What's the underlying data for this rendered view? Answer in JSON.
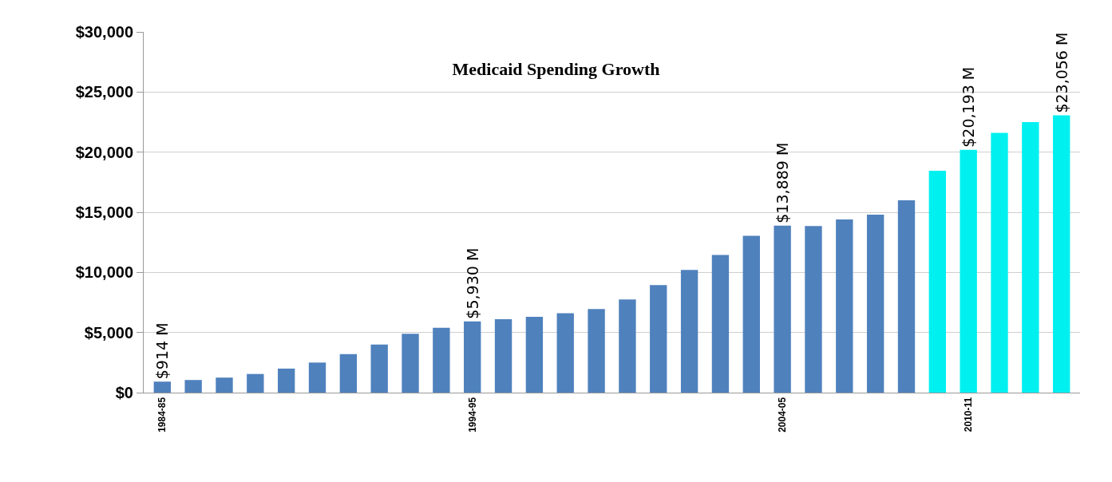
{
  "chart_data": {
    "type": "bar",
    "title": "Medicaid Spending Growth",
    "categories": [
      "1984-85",
      null,
      null,
      null,
      null,
      null,
      null,
      null,
      null,
      null,
      "1994-95",
      null,
      null,
      null,
      null,
      null,
      null,
      null,
      null,
      null,
      "2004-05",
      null,
      null,
      null,
      null,
      null,
      "2010-11",
      null,
      null,
      null
    ],
    "values": [
      914,
      1050,
      1250,
      1550,
      2000,
      2500,
      3200,
      4000,
      4900,
      5400,
      5930,
      6100,
      6300,
      6600,
      6950,
      7750,
      8950,
      10200,
      11450,
      13050,
      13889,
      13850,
      14400,
      14800,
      16000,
      18450,
      20193,
      21600,
      22500,
      23056
    ],
    "colors": [
      "#4f81bd",
      "#4f81bd",
      "#4f81bd",
      "#4f81bd",
      "#4f81bd",
      "#4f81bd",
      "#4f81bd",
      "#4f81bd",
      "#4f81bd",
      "#4f81bd",
      "#4f81bd",
      "#4f81bd",
      "#4f81bd",
      "#4f81bd",
      "#4f81bd",
      "#4f81bd",
      "#4f81bd",
      "#4f81bd",
      "#4f81bd",
      "#4f81bd",
      "#4f81bd",
      "#4f81bd",
      "#4f81bd",
      "#4f81bd",
      "#4f81bd",
      "#00f0f0",
      "#00f0f0",
      "#00f0f0",
      "#00f0f0",
      "#00f0f0"
    ],
    "value_labels": [
      "$914 M",
      null,
      null,
      null,
      null,
      null,
      null,
      null,
      null,
      null,
      "$5,930 M",
      null,
      null,
      null,
      null,
      null,
      null,
      null,
      null,
      null,
      "$13,889 M",
      null,
      null,
      null,
      null,
      null,
      "$20,193 M",
      null,
      null,
      "$23,056 M"
    ],
    "ylim": [
      0,
      30000
    ],
    "yticks": [
      {
        "value": 0,
        "label": "$0"
      },
      {
        "value": 5000,
        "label": "$5,000"
      },
      {
        "value": 10000,
        "label": "$10,000"
      },
      {
        "value": 15000,
        "label": "$15,000"
      },
      {
        "value": 20000,
        "label": "$20,000"
      },
      {
        "value": 25000,
        "label": "$25,000"
      },
      {
        "value": 30000,
        "label": "$30,000"
      }
    ],
    "grid": "y"
  }
}
